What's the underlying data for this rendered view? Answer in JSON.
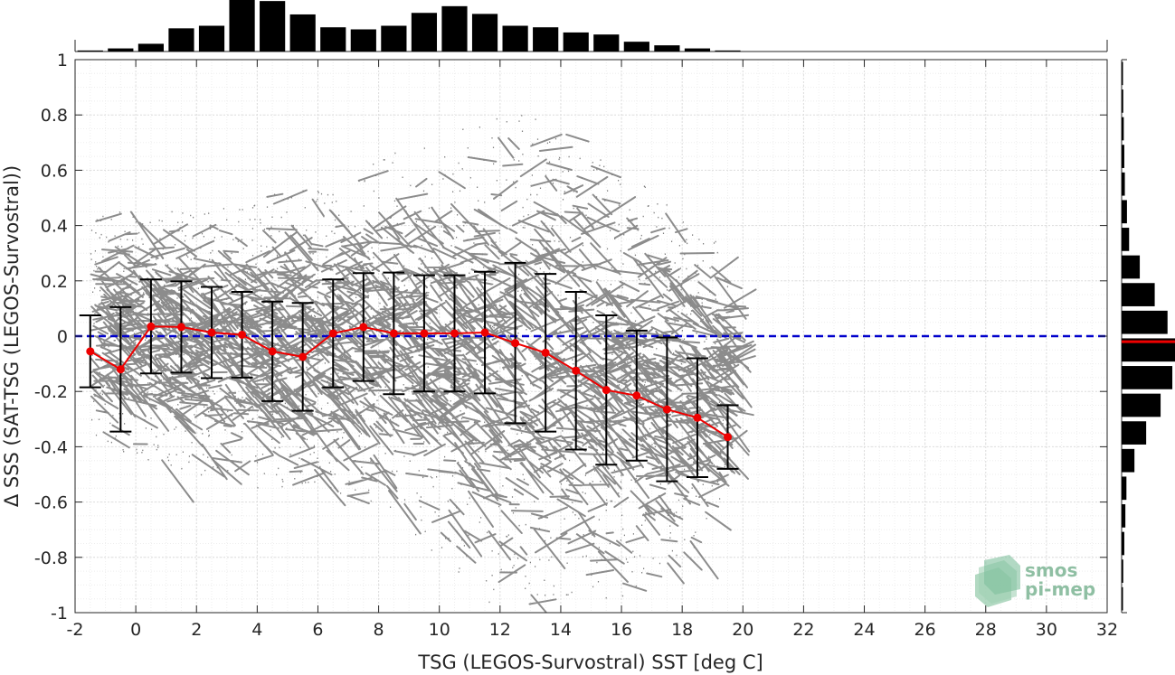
{
  "chart_data": {
    "type": "scatter",
    "xlabel": "TSG (LEGOS-Survostral) SST [deg C]",
    "ylabel": "Δ SSS (SAT-TSG (LEGOS-Survostral))",
    "xlim": [
      -2,
      32
    ],
    "ylim": [
      -1,
      1
    ],
    "x_ticks": [
      "-2",
      "0",
      "2",
      "4",
      "6",
      "8",
      "10",
      "12",
      "14",
      "16",
      "18",
      "20",
      "22",
      "24",
      "26",
      "28",
      "30",
      "32"
    ],
    "y_ticks": [
      "-1",
      "-0.8",
      "-0.6",
      "-0.4",
      "-0.2",
      "0",
      "0.2",
      "0.4",
      "0.6",
      "0.8",
      "1"
    ],
    "grid": true,
    "minor_grid": true,
    "reference_line": {
      "y": 0,
      "style": "dashed",
      "color": "#0000cc"
    },
    "scatter_cloud": {
      "color": "#808080",
      "envelope": [
        {
          "x": -1.5,
          "lo": -0.35,
          "hi": 0.45
        },
        {
          "x": 0,
          "lo": -0.45,
          "hi": 0.45
        },
        {
          "x": 2,
          "lo": -0.5,
          "hi": 0.45
        },
        {
          "x": 4,
          "lo": -0.55,
          "hi": 0.5
        },
        {
          "x": 6,
          "lo": -0.55,
          "hi": 0.55
        },
        {
          "x": 8,
          "lo": -0.65,
          "hi": 0.65
        },
        {
          "x": 10,
          "lo": -0.8,
          "hi": 0.75
        },
        {
          "x": 12,
          "lo": -1.0,
          "hi": 0.85
        },
        {
          "x": 14,
          "lo": -0.95,
          "hi": 0.75
        },
        {
          "x": 16,
          "lo": -0.95,
          "hi": 0.6
        },
        {
          "x": 18,
          "lo": -0.85,
          "hi": 0.45
        },
        {
          "x": 19.5,
          "lo": -0.55,
          "hi": 0.3
        }
      ]
    },
    "series": [
      {
        "color": "#ee0000",
        "errorbar_color": "#000000",
        "x": [
          -1.5,
          -0.5,
          0.5,
          1.5,
          2.5,
          3.5,
          4.5,
          5.5,
          6.5,
          7.5,
          8.5,
          9.5,
          10.5,
          11.5,
          12.5,
          13.5,
          14.5,
          15.5,
          16.5,
          17.5,
          18.5,
          19.5
        ],
        "y": [
          -0.055,
          -0.12,
          0.035,
          0.033,
          0.013,
          0.005,
          -0.055,
          -0.075,
          0.01,
          0.033,
          0.01,
          0.01,
          0.01,
          0.013,
          -0.025,
          -0.06,
          -0.125,
          -0.195,
          -0.215,
          -0.265,
          -0.295,
          -0.365
        ],
        "err": [
          0.13,
          0.225,
          0.17,
          0.165,
          0.165,
          0.155,
          0.18,
          0.195,
          0.195,
          0.195,
          0.22,
          0.21,
          0.21,
          0.22,
          0.29,
          0.285,
          0.285,
          0.27,
          0.235,
          0.26,
          0.215,
          0.115
        ]
      }
    ],
    "top_histogram": {
      "bin_centers": [
        -1.5,
        -0.5,
        0.5,
        1.5,
        2.5,
        3.5,
        4.5,
        5.5,
        6.5,
        7.5,
        8.5,
        9.5,
        10.5,
        11.5,
        12.5,
        13.5,
        14.5,
        15.5,
        16.5,
        17.5,
        18.5,
        19.5
      ],
      "values": [
        0.02,
        0.06,
        0.15,
        0.45,
        0.5,
        1.0,
        0.98,
        0.72,
        0.47,
        0.43,
        0.5,
        0.75,
        0.88,
        0.73,
        0.5,
        0.47,
        0.37,
        0.33,
        0.19,
        0.12,
        0.06,
        0.02
      ],
      "color": "#000000"
    },
    "right_histogram": {
      "bin_centers": [
        0.95,
        0.85,
        0.75,
        0.65,
        0.55,
        0.45,
        0.35,
        0.25,
        0.15,
        0.05,
        -0.05,
        -0.15,
        -0.25,
        -0.35,
        -0.45,
        -0.55,
        -0.65,
        -0.75,
        -0.85,
        -0.95
      ],
      "values": [
        0.02,
        0.03,
        0.04,
        0.05,
        0.06,
        0.1,
        0.14,
        0.34,
        0.62,
        0.86,
        1.0,
        0.95,
        0.73,
        0.46,
        0.24,
        0.09,
        0.07,
        0.05,
        0.03,
        0.02
      ],
      "mean": -0.02,
      "mean_color": "#ee0000",
      "color": "#000000"
    }
  },
  "logo": {
    "line1": "smos",
    "line2": "pi-mep",
    "color": "#8fbfa3"
  }
}
